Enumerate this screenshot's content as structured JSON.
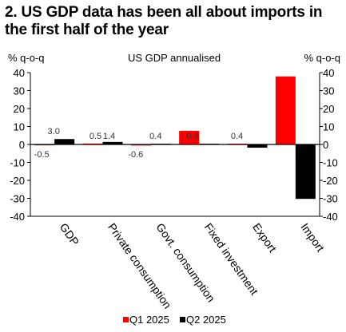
{
  "title": "2. US GDP data has been all about imports in the first half of the year",
  "chart_data": {
    "type": "bar",
    "subtitle": "US GDP annualised",
    "ylabel_left": "% q-o-q",
    "ylabel_right": "% q-o-q",
    "categories": [
      "GDP",
      "Private consumption",
      "Govt. consumption",
      "Fixed investment",
      "Export",
      "Import"
    ],
    "series": [
      {
        "name": "Q1 2025",
        "color": "#ff0000",
        "values": [
          -0.5,
          0.5,
          -0.6,
          7.6,
          0.4,
          37.9
        ]
      },
      {
        "name": "Q2 2025",
        "color": "#000000",
        "values": [
          3.0,
          1.4,
          0.4,
          0.4,
          -1.8,
          -30.3
        ]
      }
    ],
    "data_labels": [
      {
        "category": "GDP",
        "labels": [
          "-0.5",
          "3.0"
        ]
      },
      {
        "category": "Private consumption",
        "labels": [
          "0.5",
          "1.4"
        ]
      },
      {
        "category": "Govt. consumption",
        "labels": [
          "-0.6",
          "0.4"
        ]
      },
      {
        "category": "Fixed investment",
        "labels": [
          "0.4"
        ]
      },
      {
        "category": "Export",
        "labels": [
          "0.4"
        ]
      }
    ],
    "ylim": [
      -40,
      40
    ],
    "yticks": [
      -40,
      -30,
      -20,
      -10,
      0,
      10,
      20,
      30,
      40
    ],
    "grid": false,
    "legend": "bottom"
  }
}
